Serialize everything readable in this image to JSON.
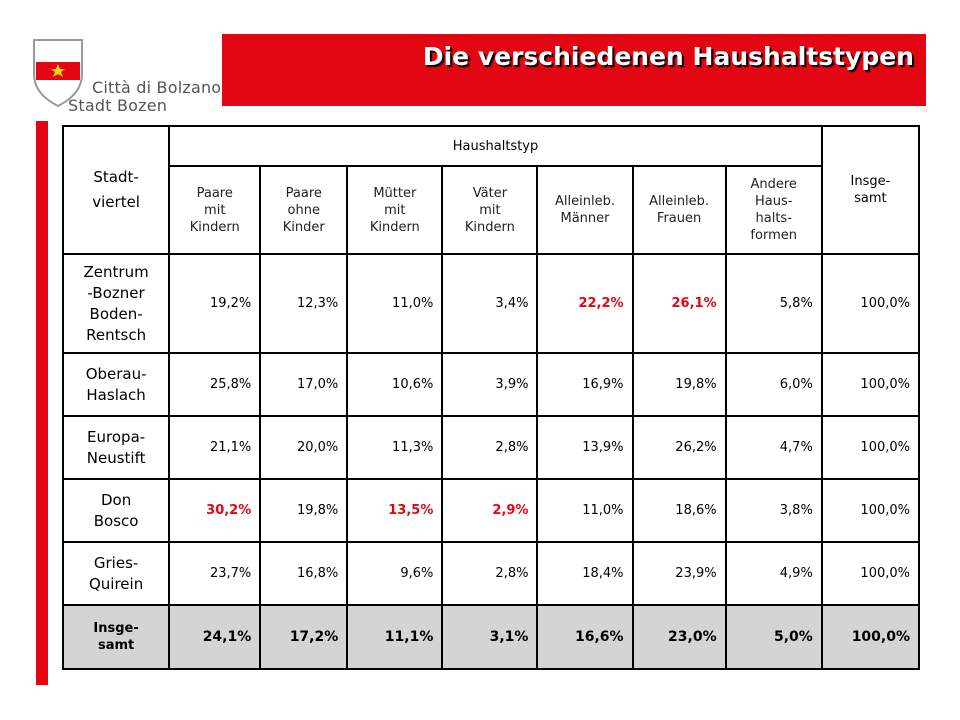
{
  "logo": {
    "line1": "Città di Bolzano",
    "line2": "Stadt Bozen",
    "colors": {
      "shield_red": "#e20613",
      "star": "#f5d800",
      "outline": "#999999"
    }
  },
  "title": "Die verschiedenen Haushaltstypen",
  "colors": {
    "accent": "#e20613",
    "total_row_bg": "#d4d4d4",
    "highlight_text": "#e20613"
  },
  "table": {
    "corner_header_lines": [
      "Stadt-",
      "viertel"
    ],
    "group_header": "Haushaltstyp",
    "total_header_lines": [
      "Insge-",
      "samt"
    ],
    "columns": [
      {
        "lines": [
          "Paare",
          "mit",
          "Kindern"
        ]
      },
      {
        "lines": [
          "Paare",
          "ohne",
          "Kinder"
        ]
      },
      {
        "lines": [
          "Mütter",
          "mit",
          "Kindern"
        ]
      },
      {
        "lines": [
          "Väter",
          "mit",
          "Kindern"
        ]
      },
      {
        "lines": [
          "Alleinleb.",
          "Männer"
        ]
      },
      {
        "lines": [
          "Alleinleb.",
          "Frauen"
        ]
      },
      {
        "lines": [
          "Andere",
          "Haus-",
          "halts-",
          "formen"
        ]
      }
    ],
    "rows": [
      {
        "label_lines": [
          "Zentrum",
          "-Bozner",
          "Boden-",
          "Rentsch"
        ],
        "values": [
          "19,2%",
          "12,3%",
          "11,0%",
          "3,4%",
          "22,2%",
          "26,1%",
          "5,8%"
        ],
        "highlight": [
          false,
          false,
          false,
          false,
          true,
          true,
          false
        ],
        "total": "100,0%"
      },
      {
        "label_lines": [
          "Oberau-",
          "Haslach"
        ],
        "values": [
          "25,8%",
          "17,0%",
          "10,6%",
          "3,9%",
          "16,9%",
          "19,8%",
          "6,0%"
        ],
        "highlight": [
          false,
          false,
          false,
          false,
          false,
          false,
          false
        ],
        "total": "100,0%"
      },
      {
        "label_lines": [
          "Europa-",
          "Neustift"
        ],
        "values": [
          "21,1%",
          "20,0%",
          "11,3%",
          "2,8%",
          "13,9%",
          "26,2%",
          "4,7%"
        ],
        "highlight": [
          false,
          false,
          false,
          false,
          false,
          false,
          false
        ],
        "total": "100,0%"
      },
      {
        "label_lines": [
          "Don",
          "Bosco"
        ],
        "values": [
          "30,2%",
          "19,8%",
          "13,5%",
          "2,9%",
          "11,0%",
          "18,6%",
          "3,8%"
        ],
        "highlight": [
          true,
          false,
          true,
          true,
          false,
          false,
          false
        ],
        "total": "100,0%"
      },
      {
        "label_lines": [
          "Gries-",
          "Quirein"
        ],
        "values": [
          "23,7%",
          "16,8%",
          "9,6%",
          "2,8%",
          "18,4%",
          "23,9%",
          "4,9%"
        ],
        "highlight": [
          false,
          false,
          false,
          false,
          false,
          false,
          false
        ],
        "total": "100,0%"
      }
    ],
    "total_row": {
      "label_lines": [
        "Insge-",
        "samt"
      ],
      "values": [
        "24,1%",
        "17,2%",
        "11,1%",
        "3,1%",
        "16,6%",
        "23,0%",
        "5,0%"
      ],
      "total": "100,0%"
    }
  }
}
